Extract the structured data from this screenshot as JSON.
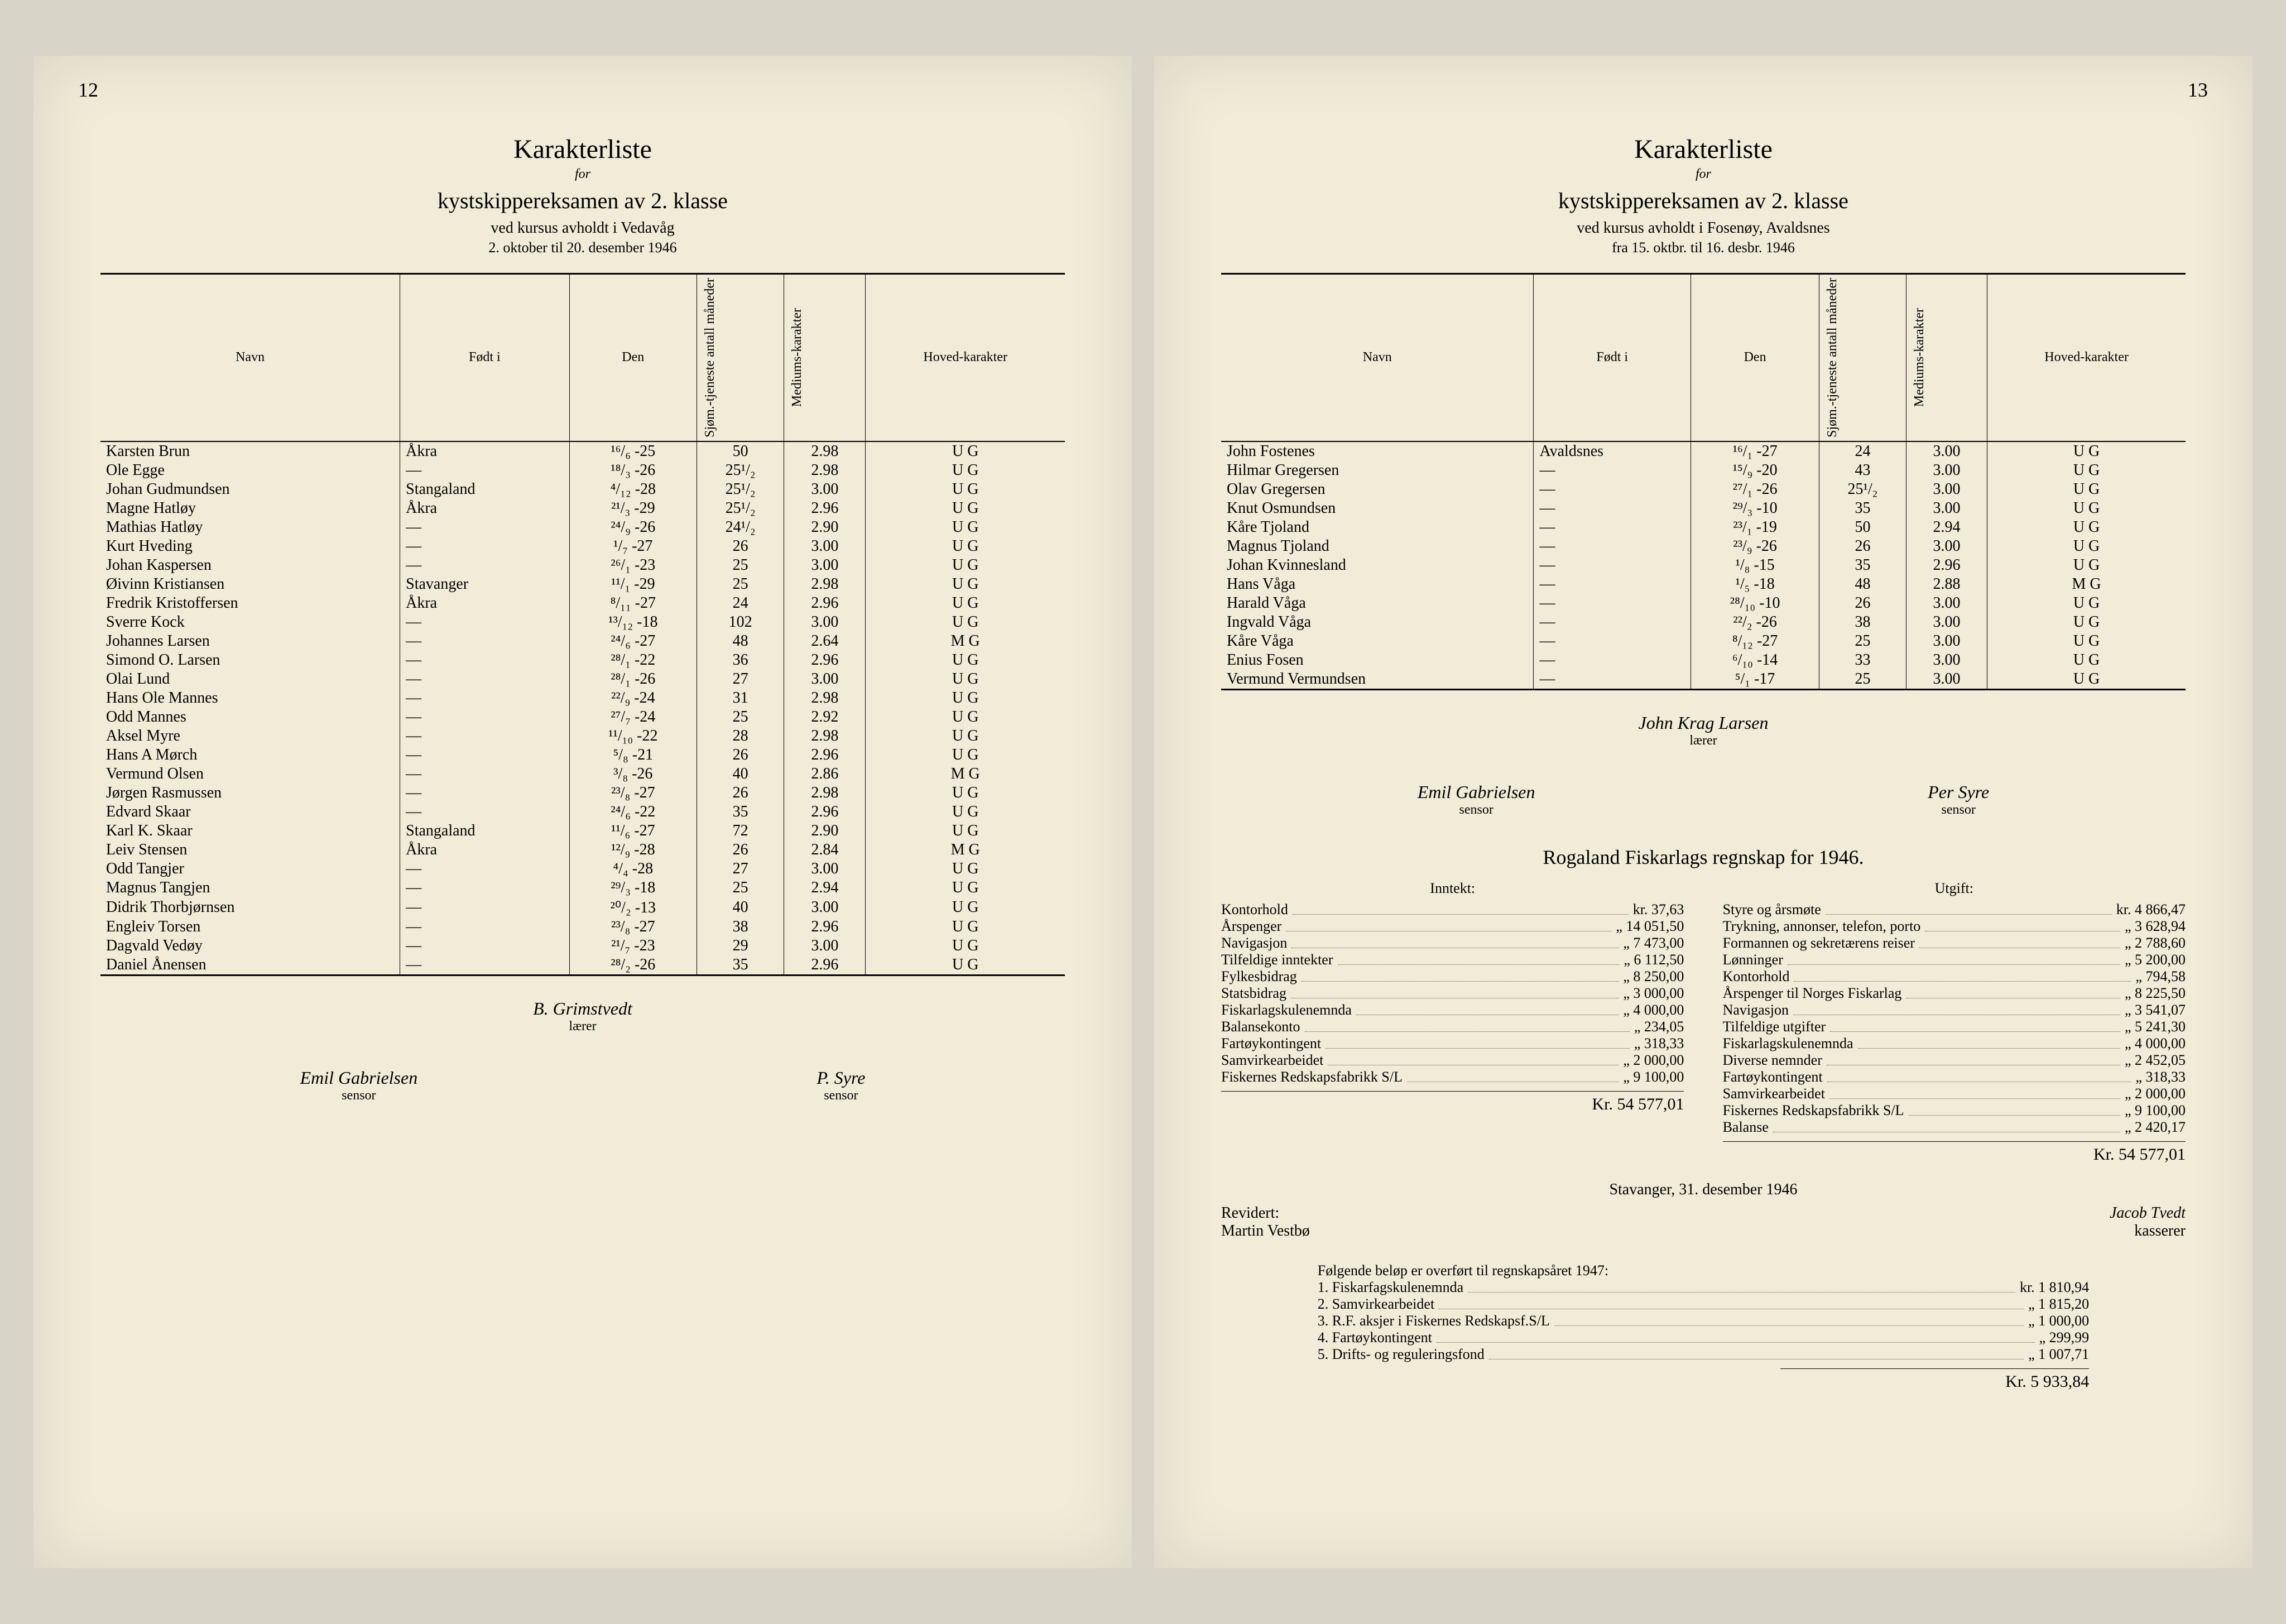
{
  "left": {
    "page_num": "12",
    "title": "Karakterliste",
    "for": "for",
    "subtitle": "kystskippereksamen av 2. klasse",
    "line3": "ved kursus avholdt i Vedavåg",
    "line4": "2. oktober til 20. desember 1946",
    "cols": [
      "Navn",
      "Født i",
      "Den",
      "Sjøm.-tjeneste antall måneder",
      "Mediums-karakter",
      "Hoved-karakter"
    ],
    "rows": [
      [
        "Karsten Brun",
        "Åkra",
        "¹⁶/₆ -25",
        "50",
        "2.98",
        "U G"
      ],
      [
        "Ole Egge",
        "—",
        "¹⁸/₃ -26",
        "25¹/₂",
        "2.98",
        "U G"
      ],
      [
        "Johan Gudmundsen",
        "Stangaland",
        "⁴/₁₂ -28",
        "25¹/₂",
        "3.00",
        "U G"
      ],
      [
        "Magne Hatløy",
        "Åkra",
        "²¹/₃ -29",
        "25¹/₂",
        "2.96",
        "U G"
      ],
      [
        "Mathias Hatløy",
        "—",
        "²⁴/₉ -26",
        "24¹/₂",
        "2.90",
        "U G"
      ],
      [
        "Kurt Hveding",
        "—",
        "¹/₇ -27",
        "26",
        "3.00",
        "U G"
      ],
      [
        "Johan Kaspersen",
        "—",
        "²⁶/₁ -23",
        "25",
        "3.00",
        "U G"
      ],
      [
        "Øivinn Kristiansen",
        "Stavanger",
        "¹¹/₁ -29",
        "25",
        "2.98",
        "U G"
      ],
      [
        "Fredrik Kristoffersen",
        "Åkra",
        "⁸/₁₁ -27",
        "24",
        "2.96",
        "U G"
      ],
      [
        "Sverre Kock",
        "—",
        "¹³/₁₂ -18",
        "102",
        "3.00",
        "U G"
      ],
      [
        "Johannes Larsen",
        "—",
        "²⁴/₆ -27",
        "48",
        "2.64",
        "M G"
      ],
      [
        "Simond O. Larsen",
        "—",
        "²⁸/₁ -22",
        "36",
        "2.96",
        "U G"
      ],
      [
        "Olai Lund",
        "—",
        "²⁸/₁ -26",
        "27",
        "3.00",
        "U G"
      ],
      [
        "Hans Ole Mannes",
        "—",
        "²²/₉ -24",
        "31",
        "2.98",
        "U G"
      ],
      [
        "Odd Mannes",
        "—",
        "²⁷/₇ -24",
        "25",
        "2.92",
        "U G"
      ],
      [
        "Aksel Myre",
        "—",
        "¹¹/₁₀ -22",
        "28",
        "2.98",
        "U G"
      ],
      [
        "Hans A Mørch",
        "—",
        "⁵/₈ -21",
        "26",
        "2.96",
        "U G"
      ],
      [
        "Vermund Olsen",
        "—",
        "³/₈ -26",
        "40",
        "2.86",
        "M G"
      ],
      [
        "Jørgen Rasmussen",
        "—",
        "²³/₈ -27",
        "26",
        "2.98",
        "U G"
      ],
      [
        "Edvard Skaar",
        "—",
        "²⁴/₆ -22",
        "35",
        "2.96",
        "U G"
      ],
      [
        "Karl K. Skaar",
        "Stangaland",
        "¹¹/₆ -27",
        "72",
        "2.90",
        "U G"
      ],
      [
        "Leiv Stensen",
        "Åkra",
        "¹²/₉ -28",
        "26",
        "2.84",
        "M G"
      ],
      [
        "Odd Tangjer",
        "—",
        "⁴/₄ -28",
        "27",
        "3.00",
        "U G"
      ],
      [
        "Magnus Tangjen",
        "—",
        "²⁹/₃ -18",
        "25",
        "2.94",
        "U G"
      ],
      [
        "Didrik Thorbjørnsen",
        "—",
        "²⁰/₂ -13",
        "40",
        "3.00",
        "U G"
      ],
      [
        "Engleiv Torsen",
        "—",
        "²³/₈ -27",
        "38",
        "2.96",
        "U G"
      ],
      [
        "Dagvald Vedøy",
        "—",
        "²¹/₇ -23",
        "29",
        "3.00",
        "U G"
      ],
      [
        "Daniel Ånensen",
        "—",
        "²⁸/₂ -26",
        "35",
        "2.96",
        "U G"
      ]
    ],
    "teacher": {
      "name": "B. Grimstvedt",
      "role": "lærer"
    },
    "sensor_left": {
      "name": "Emil Gabrielsen",
      "role": "sensor"
    },
    "sensor_right": {
      "name": "P. Syre",
      "role": "sensor"
    }
  },
  "right": {
    "page_num": "13",
    "title": "Karakterliste",
    "for": "for",
    "subtitle": "kystskippereksamen av 2. klasse",
    "line3": "ved kursus avholdt i Fosenøy, Avaldsnes",
    "line4": "fra 15. oktbr. til 16. desbr. 1946",
    "cols": [
      "Navn",
      "Født i",
      "Den",
      "Sjøm.-tjeneste antall måneder",
      "Mediums-karakter",
      "Hoved-karakter"
    ],
    "rows": [
      [
        "John Fostenes",
        "Avaldsnes",
        "¹⁶/₁ -27",
        "24",
        "3.00",
        "U G"
      ],
      [
        "Hilmar Gregersen",
        "—",
        "¹⁵/₉ -20",
        "43",
        "3.00",
        "U G"
      ],
      [
        "Olav Gregersen",
        "—",
        "²⁷/₁ -26",
        "25¹/₂",
        "3.00",
        "U G"
      ],
      [
        "Knut Osmundsen",
        "—",
        "²⁹/₃ -10",
        "35",
        "3.00",
        "U G"
      ],
      [
        "Kåre Tjoland",
        "—",
        "²³/₁ -19",
        "50",
        "2.94",
        "U G"
      ],
      [
        "Magnus Tjoland",
        "—",
        "²³/₉ -26",
        "26",
        "3.00",
        "U G"
      ],
      [
        "Johan Kvinnesland",
        "—",
        "¹/₈ -15",
        "35",
        "2.96",
        "U G"
      ],
      [
        "Hans Våga",
        "—",
        "¹/₅ -18",
        "48",
        "2.88",
        "M G"
      ],
      [
        "Harald Våga",
        "—",
        "²⁸/₁₀ -10",
        "26",
        "3.00",
        "U G"
      ],
      [
        "Ingvald Våga",
        "—",
        "²²/₂ -26",
        "38",
        "3.00",
        "U G"
      ],
      [
        "Kåre Våga",
        "—",
        "⁸/₁₂ -27",
        "25",
        "3.00",
        "U G"
      ],
      [
        "Enius Fosen",
        "—",
        "⁶/₁₀ -14",
        "33",
        "3.00",
        "U G"
      ],
      [
        "Vermund Vermundsen",
        "—",
        "⁵/₁ -17",
        "25",
        "3.00",
        "U G"
      ]
    ],
    "teacher": {
      "name": "John Krag Larsen",
      "role": "lærer"
    },
    "sensor_left": {
      "name": "Emil Gabrielsen",
      "role": "sensor"
    },
    "sensor_right": {
      "name": "Per Syre",
      "role": "sensor"
    },
    "accounts_title": "Rogaland Fiskarlags regnskap for 1946.",
    "inntekt_label": "Inntekt:",
    "utgift_label": "Utgift:",
    "inntekt": [
      [
        "Kontorhold",
        "kr.",
        "37,63"
      ],
      [
        "Årspenger",
        "„",
        "14 051,50"
      ],
      [
        "Navigasjon",
        "„",
        "7 473,00"
      ],
      [
        "Tilfeldige inntekter",
        "„",
        "6 112,50"
      ],
      [
        "Fylkesbidrag",
        "„",
        "8 250,00"
      ],
      [
        "Statsbidrag",
        "„",
        "3 000,00"
      ],
      [
        "Fiskarlagskulenemnda",
        "„",
        "4 000,00"
      ],
      [
        "Balansekonto",
        "„",
        "234,05"
      ],
      [
        "Fartøykontingent",
        "„",
        "318,33"
      ],
      [
        "Samvirkearbeidet",
        "„",
        "2 000,00"
      ],
      [
        "Fiskernes Redskapsfabrikk S/L",
        "„",
        "9 100,00"
      ]
    ],
    "inntekt_total": "Kr. 54 577,01",
    "utgift": [
      [
        "Styre og årsmøte",
        "kr.",
        "4 866,47"
      ],
      [
        "Trykning, annonser, telefon, porto",
        "„",
        "3 628,94"
      ],
      [
        "Formannen og sekretærens reiser",
        "„",
        "2 788,60"
      ],
      [
        "Lønninger",
        "„",
        "5 200,00"
      ],
      [
        "Kontorhold",
        "„",
        "794,58"
      ],
      [
        "Årspenger til Norges Fiskarlag",
        "„",
        "8 225,50"
      ],
      [
        "Navigasjon",
        "„",
        "3 541,07"
      ],
      [
        "Tilfeldige utgifter",
        "„",
        "5 241,30"
      ],
      [
        "Fiskarlagskulenemnda",
        "„",
        "4 000,00"
      ],
      [
        "Diverse nemnder",
        "„",
        "2 452,05"
      ],
      [
        "Fartøykontingent",
        "„",
        "318,33"
      ],
      [
        "Samvirkearbeidet",
        "„",
        "2 000,00"
      ],
      [
        "Fiskernes Redskapsfabrikk S/L",
        "„",
        "9 100,00"
      ],
      [
        "Balanse",
        "„",
        "2 420,17"
      ]
    ],
    "utgift_total": "Kr. 54 577,01",
    "stavanger_line": "Stavanger, 31. desember 1946",
    "revidert_label": "Revidert:",
    "revidert_name": "Martin Vestbø",
    "kasserer_name": "Jacob Tvedt",
    "kasserer_role": "kasserer",
    "transfer_intro": "Følgende beløp er overført til regnskapsåret 1947:",
    "transfer": [
      [
        "1. Fiskarfagskulenemnda",
        "kr.",
        "1 810,94"
      ],
      [
        "2. Samvirkearbeidet",
        "„",
        "1 815,20"
      ],
      [
        "3. R.F. aksjer i Fiskernes Redskapsf.S/L",
        "„",
        "1 000,00"
      ],
      [
        "4. Fartøykontingent",
        "„",
        "299,99"
      ],
      [
        "5. Drifts- og reguleringsfond",
        "„",
        "1 007,71"
      ]
    ],
    "transfer_total": "Kr.   5 933,84"
  }
}
